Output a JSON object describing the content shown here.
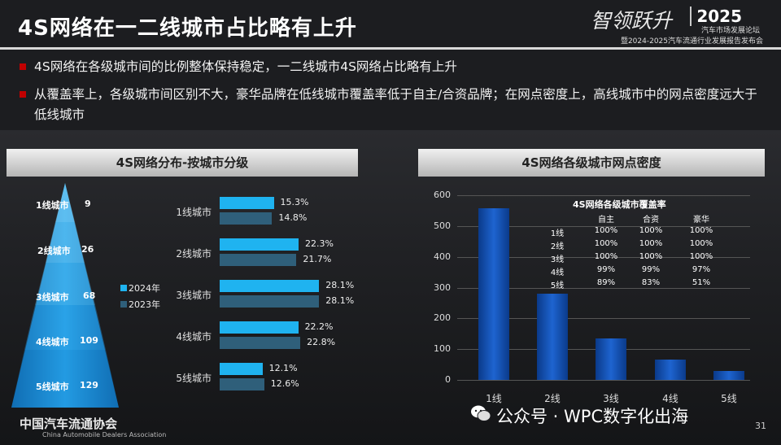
{
  "title": "4S网络在一二线城市占比略有上升",
  "brand": {
    "script": "智领跃升",
    "year": "2025",
    "line1": "汽车市场发展论坛",
    "line2": "暨2024-2025汽车流通行业发展报告发布会"
  },
  "bullets": [
    "4S网络在各级城市间的比例整体保持稳定，一二线城市4S网络占比略有上升",
    "从覆盖率上，各级城市间区别不大，豪华品牌在低线城市覆盖率低于自主/合资品牌；在网点密度上，高线城市中的网点密度远大于低线城市"
  ],
  "colors": {
    "bar2024": "#1fb3f0",
    "bar2023": "#2f5f7a",
    "accent": "#c00000",
    "column": "#1e64d0"
  },
  "chart_data": [
    {
      "type": "table",
      "name": "pyramid",
      "rows": [
        {
          "label": "1线城市",
          "value": 9
        },
        {
          "label": "2线城市",
          "value": 26
        },
        {
          "label": "3线城市",
          "value": 68
        },
        {
          "label": "4线城市",
          "value": 109
        },
        {
          "label": "5线城市",
          "value": 129
        }
      ]
    },
    {
      "type": "bar",
      "orientation": "horizontal",
      "title": "4S网络分布-按城市分级",
      "categories": [
        "1线城市",
        "2线城市",
        "3线城市",
        "4线城市",
        "5线城市"
      ],
      "series": [
        {
          "name": "2024年",
          "values": [
            15.3,
            22.3,
            28.1,
            22.2,
            12.1
          ],
          "labels": [
            "15.3%",
            "22.3%",
            "28.1%",
            "22.2%",
            "12.1%"
          ]
        },
        {
          "name": "2023年",
          "values": [
            14.8,
            21.7,
            28.1,
            22.8,
            12.6
          ],
          "labels": [
            "14.8%",
            "21.7%",
            "28.1%",
            "22.8%",
            "12.6%"
          ]
        }
      ],
      "xlim": [
        0,
        30
      ],
      "legend": "left"
    },
    {
      "type": "bar",
      "title": "4S网络各级城市网点密度",
      "categories": [
        "1线",
        "2线",
        "3线",
        "4线",
        "5线"
      ],
      "values": [
        557,
        280,
        135,
        65,
        30
      ],
      "ylim": [
        0,
        600
      ],
      "yticks": [
        "0",
        "100",
        "200",
        "300",
        "400",
        "500",
        "600"
      ],
      "grid": true
    },
    {
      "type": "table",
      "title": "4S网络各级城市覆盖率",
      "columns": [
        "自主",
        "合资",
        "豪华"
      ],
      "rows": [
        {
          "label": "1线",
          "values": [
            "100%",
            "100%",
            "100%"
          ]
        },
        {
          "label": "2线",
          "values": [
            "100%",
            "100%",
            "100%"
          ]
        },
        {
          "label": "3线",
          "values": [
            "100%",
            "100%",
            "100%"
          ]
        },
        {
          "label": "4线",
          "values": [
            "99%",
            "99%",
            "97%"
          ]
        },
        {
          "label": "5线",
          "values": [
            "89%",
            "83%",
            "51%"
          ]
        }
      ]
    }
  ],
  "footer": {
    "org": "中国汽车流通协会",
    "org_en": "China Automobile Dealers Association",
    "wechat": "公众号 · WPC数字化出海",
    "page": "31"
  }
}
